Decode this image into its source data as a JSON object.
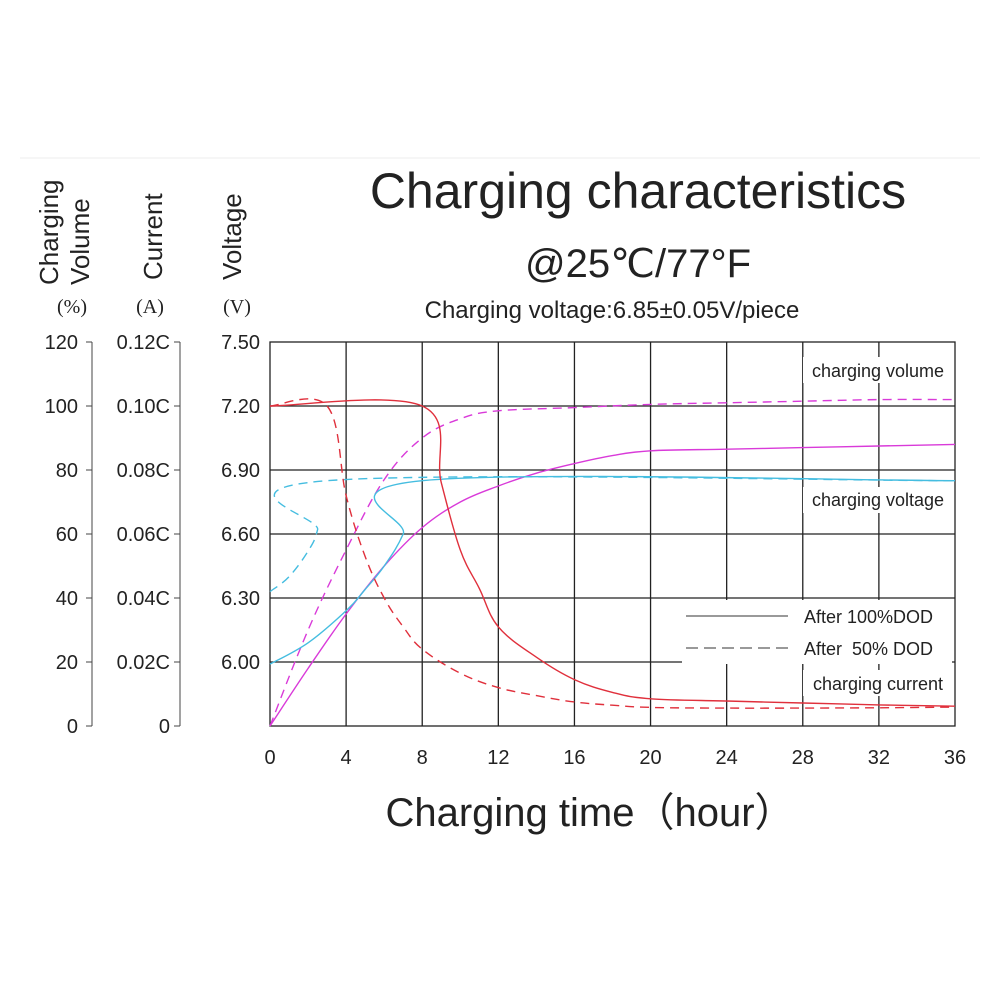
{
  "chart_data": {
    "type": "line",
    "title": "Charging characteristics",
    "subtitle": "@25℃/77°F",
    "note": "Charging voltage:6.85±0.05V/piece",
    "xlabel": "Charging time（hour）",
    "x_ticks": [
      "0",
      "4",
      "8",
      "12",
      "16",
      "20",
      "24",
      "28",
      "32",
      "36"
    ],
    "xlim": [
      0,
      36
    ],
    "axes": [
      {
        "label": [
          "Charging",
          "Volume"
        ],
        "unit": "(%)",
        "ticks": [
          "0",
          "20",
          "40",
          "60",
          "80",
          "100",
          "120"
        ],
        "range": [
          0,
          120
        ]
      },
      {
        "label": [
          "Current"
        ],
        "unit": "(A)",
        "ticks": [
          "0",
          "0.02C",
          "0.04C",
          "0.06C",
          "0.08C",
          "0.10C",
          "0.12C"
        ],
        "range": [
          0,
          0.12
        ]
      },
      {
        "label": [
          "Voltage"
        ],
        "unit": "(V)",
        "ticks": [
          "6.00",
          "6.30",
          "6.60",
          "6.90",
          "7.20",
          "7.50"
        ],
        "range": [
          5.7,
          7.5
        ]
      }
    ],
    "grid": true,
    "annotations": {
      "volume": "charging volume",
      "voltage": "charging voltage",
      "current": "charging current"
    },
    "legend": {
      "position": "bottom-right",
      "solid": "After 100%DOD",
      "dashed": "After  50% DOD"
    },
    "colors": {
      "volume": "#d93ad9",
      "voltage": "#45bde0",
      "current": "#e0303c"
    },
    "series": [
      {
        "curve": "volume",
        "style": "solid",
        "axis": "volume",
        "x": [
          0,
          2,
          4,
          6,
          8,
          10,
          12,
          14,
          16,
          18,
          20,
          24,
          28,
          32,
          36
        ],
        "y": [
          0,
          18,
          35,
          50,
          62,
          70,
          75,
          79,
          82,
          84.5,
          86,
          86.5,
          87,
          87.5,
          88
        ]
      },
      {
        "curve": "volume",
        "style": "dashed",
        "axis": "volume",
        "x": [
          0,
          2,
          4,
          6,
          8,
          10,
          12,
          16,
          20,
          24,
          28,
          32,
          36
        ],
        "y": [
          0,
          30,
          55,
          77,
          90,
          96,
          98.5,
          99.5,
          100.5,
          101,
          101.5,
          102,
          102
        ]
      },
      {
        "curve": "voltage",
        "style": "solid",
        "axis": "voltage",
        "x": [
          0,
          2,
          4,
          5,
          6,
          7,
          8,
          36
        ],
        "y": [
          5.99,
          6.09,
          6.24,
          6.34,
          6.45,
          6.6,
          6.85,
          6.85
        ]
      },
      {
        "curve": "voltage",
        "style": "dashed",
        "axis": "voltage",
        "x": [
          0,
          1,
          2,
          2.5,
          3,
          36
        ],
        "y": [
          6.33,
          6.4,
          6.52,
          6.62,
          6.85,
          6.85
        ]
      },
      {
        "curve": "current",
        "style": "solid",
        "axis": "current",
        "x": [
          0,
          8,
          9,
          10,
          11,
          12,
          14,
          16,
          18,
          20,
          24,
          28,
          32,
          36
        ],
        "y": [
          0.1,
          0.1,
          0.076,
          0.055,
          0.043,
          0.031,
          0.0215,
          0.0145,
          0.0105,
          0.0085,
          0.0078,
          0.0072,
          0.0066,
          0.0062
        ]
      },
      {
        "curve": "current",
        "style": "dashed",
        "axis": "current",
        "x": [
          0,
          3,
          4,
          5,
          6,
          7,
          8,
          10,
          12,
          14,
          16,
          18,
          20,
          24,
          28,
          32,
          36
        ],
        "y": [
          0.1,
          0.1,
          0.072,
          0.053,
          0.04,
          0.031,
          0.024,
          0.0165,
          0.012,
          0.0095,
          0.0075,
          0.0065,
          0.0058,
          0.0056,
          0.0056,
          0.0057,
          0.0059
        ]
      }
    ]
  }
}
